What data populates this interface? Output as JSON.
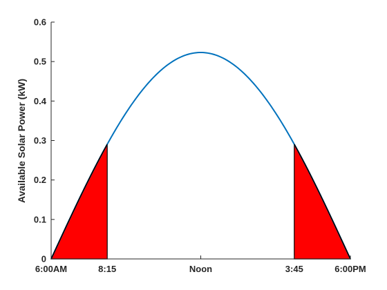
{
  "chart_data": {
    "type": "area",
    "title": "",
    "xlabel": "",
    "ylabel": "Available Solar Power (kW)",
    "xlim": [
      6,
      18
    ],
    "ylim": [
      0,
      0.6
    ],
    "x_ticks": [
      {
        "value": 6,
        "label": "6:00AM"
      },
      {
        "value": 8.25,
        "label": "8:15"
      },
      {
        "value": 12,
        "label": "Noon"
      },
      {
        "value": 15.75,
        "label": "3:45"
      },
      {
        "value": 18,
        "label": "6:00PM"
      }
    ],
    "y_ticks": [
      {
        "value": 0,
        "label": "0"
      },
      {
        "value": 0.1,
        "label": "0.1"
      },
      {
        "value": 0.2,
        "label": "0.2"
      },
      {
        "value": 0.3,
        "label": "0.3"
      },
      {
        "value": 0.4,
        "label": "0.4"
      },
      {
        "value": 0.5,
        "label": "0.5"
      },
      {
        "value": 0.6,
        "label": "0.6"
      }
    ],
    "grid": false,
    "legend": "none",
    "series": [
      {
        "color": "#0072BD",
        "x": [
          6,
          7,
          8,
          8.25,
          9,
          10,
          11,
          12,
          13,
          14,
          15,
          15.75,
          16,
          17,
          18
        ],
        "y": [
          0,
          0.136,
          0.262,
          0.296,
          0.37,
          0.454,
          0.506,
          0.523,
          0.506,
          0.454,
          0.37,
          0.296,
          0.262,
          0.136,
          0
        ]
      }
    ],
    "shaded_regions": [
      {
        "x_from": 6,
        "x_to": 8.25,
        "color": "#FF0000"
      },
      {
        "x_from": 15.75,
        "x_to": 18,
        "color": "#FF0000"
      }
    ]
  }
}
